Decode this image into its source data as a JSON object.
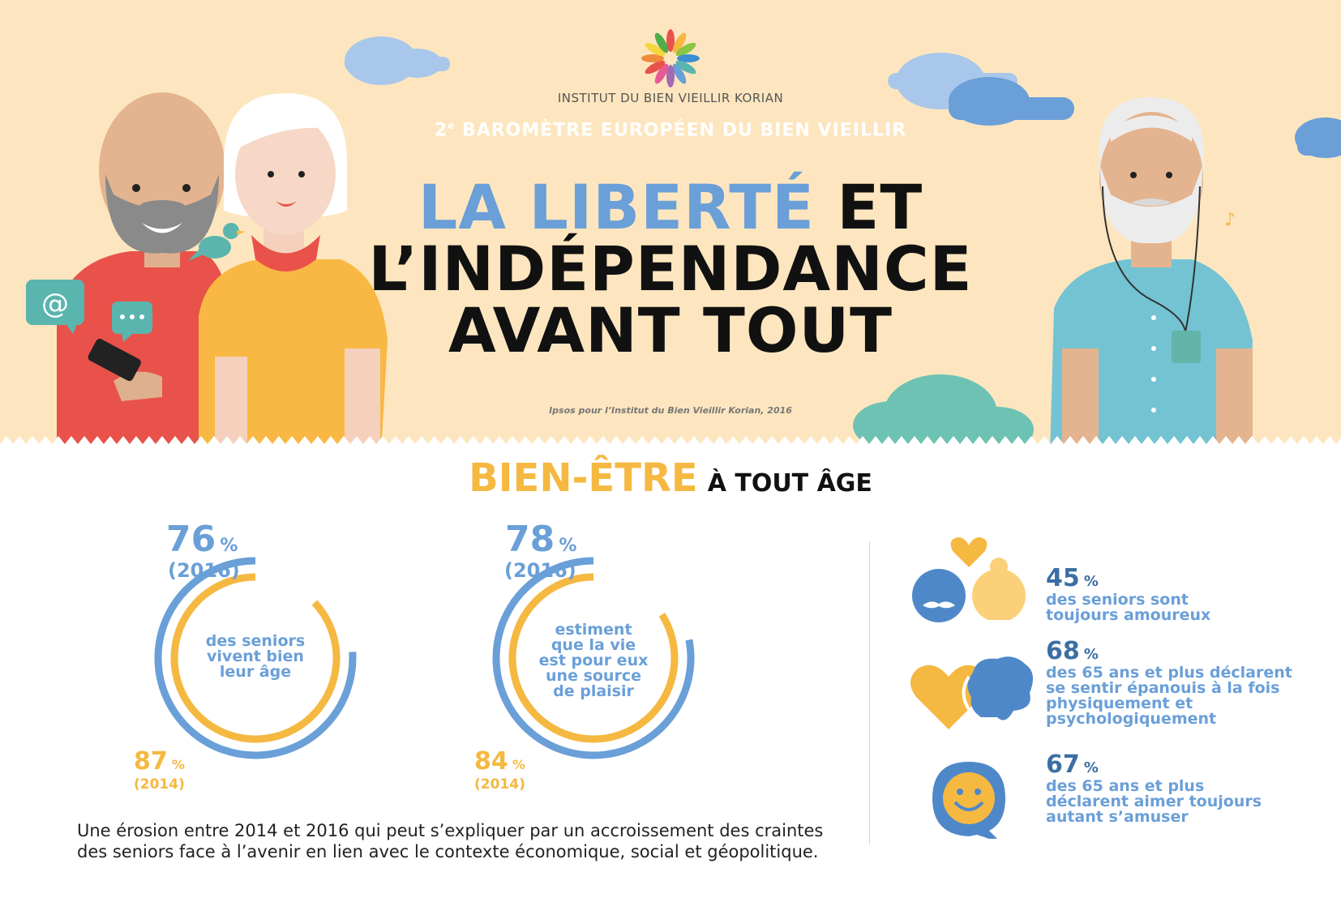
{
  "header": {
    "logo_text": "INSTITUT DU BIEN VIEILLIR KORIAN",
    "barometre_prefix": "2",
    "barometre_sup": "e",
    "barometre_rest": " BAROMÈTRE EUROPÉEN DU BIEN VIEILLIR",
    "title_highlight": "LA LIBERTÉ",
    "title_rest_1": " ET",
    "title_line_2": "L’INDÉPENDANCE",
    "title_line_3": "AVANT TOUT",
    "source": "Ipsos pour l’Institut du Bien Vieillir Korian, 2016"
  },
  "section": {
    "title_big": "BIEN-ÊTRE",
    "title_small": "À TOUT ÂGE"
  },
  "rings": [
    {
      "value_2016": "76",
      "pct": "%",
      "year_2016": "(2016)",
      "value_2014": "87",
      "year_2014": "(2014)",
      "text_lines": [
        "des seniors",
        "vivent bien",
        "leur âge"
      ]
    },
    {
      "value_2016": "78",
      "pct": "%",
      "year_2016": "(2016)",
      "value_2014": "84",
      "year_2014": "(2014)",
      "text_lines": [
        "estiment",
        "que la vie",
        "est pour eux",
        "une source",
        "de plaisir"
      ]
    }
  ],
  "ring_data": [
    {
      "value_2016": 76,
      "value_2014": 87
    },
    {
      "value_2016": 78,
      "value_2014": 84
    }
  ],
  "stats": [
    {
      "value": "45",
      "pct": "%",
      "lines": [
        "des seniors sont",
        "toujours amoureux"
      ]
    },
    {
      "value": "68",
      "pct": "%",
      "lines": [
        "des 65 ans et plus déclarent",
        "se sentir épanouis à la fois",
        "physiquement et",
        "psychologiquement"
      ]
    },
    {
      "value": "67",
      "pct": "%",
      "lines": [
        "des 65 ans et plus",
        "déclarent aimer toujours",
        "autant s’amuser"
      ]
    }
  ],
  "erosion": {
    "line1": "Une érosion entre 2014 et 2016 qui peut s’expliquer par un accroissement des craintes",
    "line2": "des seniors face à l’avenir en lien avec le contexte économique, social et géopolitique."
  },
  "icons": {
    "logo": "korian-flower-logo",
    "bubble1": "at-sign-icon",
    "bubble2": "chat-dots-icon",
    "note": "music-note-icon"
  },
  "colors": {
    "hero_bg": "#fde6bf",
    "blue": "#6a9fd8",
    "orange": "#f5b841",
    "red": "#e8524a",
    "teal": "#6ab9c0"
  }
}
